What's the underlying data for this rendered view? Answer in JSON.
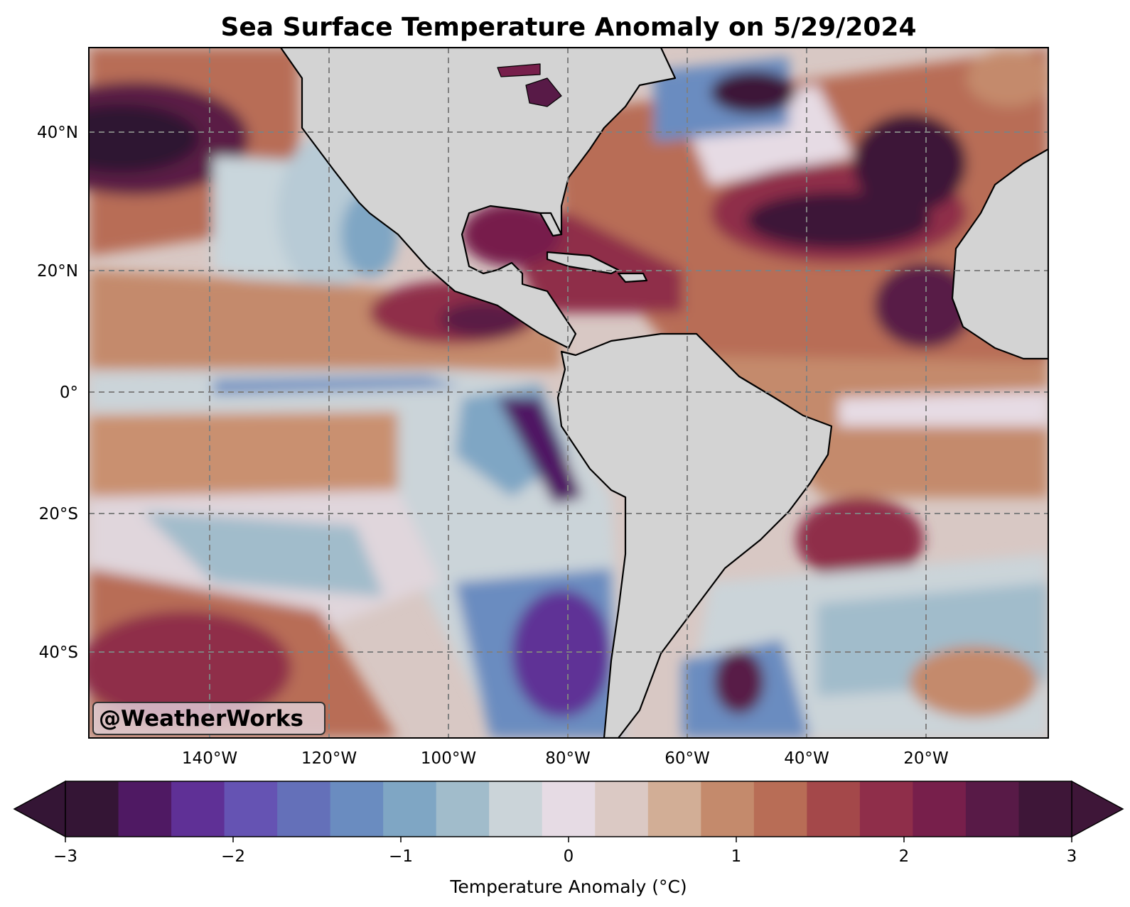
{
  "title": "Sea Surface Temperature Anomaly on 5/29/2024",
  "watermark": "@WeatherWorks",
  "map": {
    "longitude_labels": [
      "140°W",
      "120°W",
      "100°W",
      "80°W",
      "60°W",
      "40°W",
      "20°W"
    ],
    "latitude_labels": [
      "40°N",
      "20°N",
      "0°",
      "20°S",
      "40°S"
    ],
    "land_color": "#d3d3d3",
    "grid_style": "dashed gray"
  },
  "colorbar": {
    "label": "Temperature Anomaly (°C)",
    "tick_labels": [
      "−3",
      "−2",
      "−1",
      "0",
      "1",
      "2",
      "3"
    ],
    "range": [
      -3,
      3
    ],
    "extend": "both",
    "colors": [
      "#341535",
      "#4f1963",
      "#5f3096",
      "#6553b3",
      "#6470b9",
      "#6a8cc0",
      "#7fa6c4",
      "#a1bccb",
      "#cbd4d9",
      "#e6dbe4",
      "#dbc9c4",
      "#d2ae96",
      "#c48a6c",
      "#b86d56",
      "#a4484a",
      "#8f2e4a",
      "#771f4b",
      "#581a47",
      "#3e1638"
    ]
  }
}
